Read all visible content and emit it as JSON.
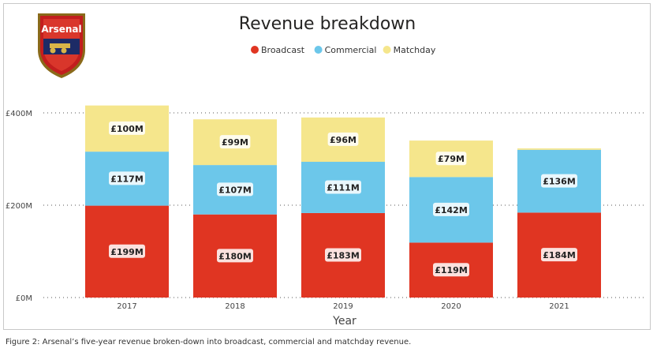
{
  "chart_data": {
    "type": "bar",
    "stacked": true,
    "title": "Revenue breakdown",
    "xlabel": "Year",
    "ylabel": "",
    "categories": [
      "2017",
      "2018",
      "2019",
      "2020",
      "2021"
    ],
    "series": [
      {
        "name": "Broadcast",
        "color": "#e03522",
        "values": [
          199,
          180,
          183,
          119,
          184
        ],
        "labels": [
          "£199M",
          "£180M",
          "£183M",
          "£119M",
          "£184M"
        ]
      },
      {
        "name": "Commercial",
        "color": "#6cc7ea",
        "values": [
          117,
          107,
          111,
          142,
          136
        ],
        "labels": [
          "£117M",
          "£107M",
          "£111M",
          "£142M",
          "£136M"
        ]
      },
      {
        "name": "Matchday",
        "color": "#f5e68c",
        "values": [
          100,
          99,
          96,
          79,
          3
        ],
        "labels": [
          "£100M",
          "£99M",
          "£96M",
          "£79M",
          ""
        ]
      }
    ],
    "yticks": [
      0,
      200,
      400
    ],
    "ytick_labels": [
      "£0M",
      "£200M",
      "£400M"
    ],
    "ylim": [
      0,
      450
    ],
    "grid": true,
    "legend_position": "top-center"
  },
  "logo": {
    "text": "Arsenal",
    "icon": "arsenal-crest-icon"
  },
  "caption": "Figure 2: Arsenal’s five-year revenue broken-down into broadcast, commercial and matchday revenue."
}
